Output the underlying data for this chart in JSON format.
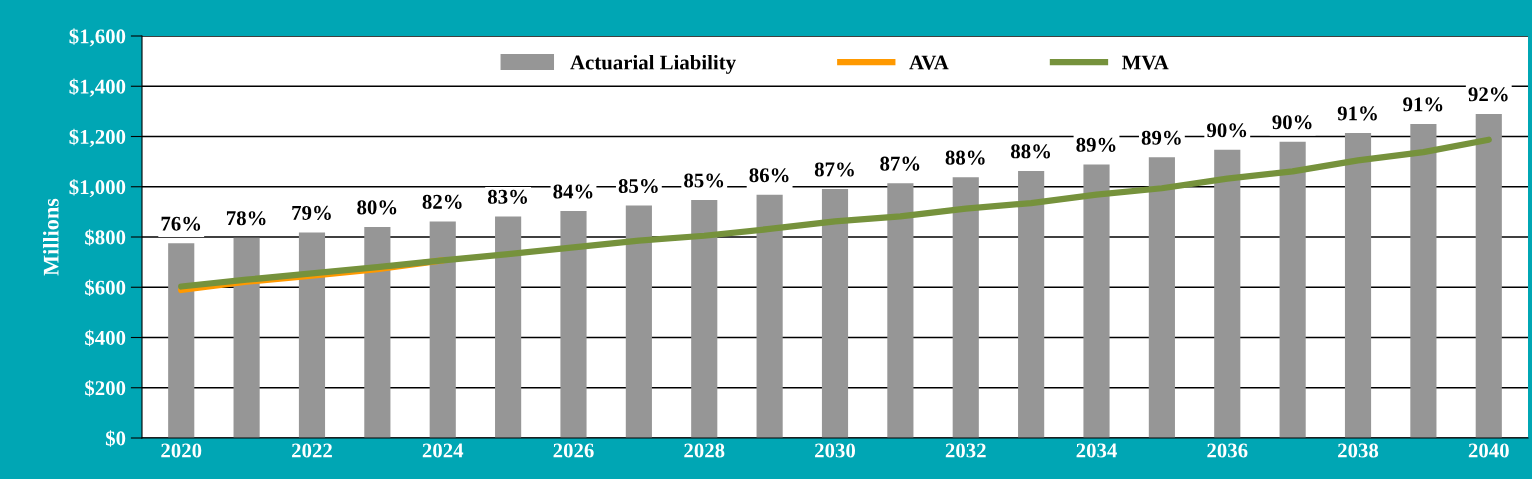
{
  "chart_data": {
    "type": "bar",
    "ylabel": "Millions",
    "categories": [
      "2020",
      null,
      "2022",
      null,
      "2024",
      null,
      "2026",
      null,
      "2028",
      null,
      "2030",
      null,
      "2032",
      null,
      "2034",
      null,
      "2036",
      null,
      "2038",
      null,
      "2040"
    ],
    "series": [
      {
        "name": "Actuarial Liability",
        "color": "#969696",
        "values": [
          775,
          797,
          818,
          840,
          862,
          882,
          903,
          925,
          947,
          968,
          991,
          1014,
          1038,
          1063,
          1089,
          1117,
          1147,
          1179,
          1214,
          1250,
          1290
        ]
      },
      {
        "name": "AVA",
        "type": "line",
        "color": "#ff9900",
        "values": [
          589,
          622,
          646,
          672,
          707,
          null,
          null,
          null,
          null,
          null,
          null,
          null,
          null,
          null,
          null,
          null,
          null,
          null,
          null,
          null,
          null
        ]
      },
      {
        "name": "MVA",
        "type": "line",
        "color": "#76923c",
        "values": [
          603,
          630,
          655,
          680,
          707,
          732,
          759,
          786,
          805,
          832,
          862,
          882,
          913,
          935,
          969,
          994,
          1032,
          1061,
          1105,
          1138,
          1187
        ]
      }
    ],
    "annotations": [
      {
        "text": "76%",
        "x": "2020",
        "y": 775
      },
      {
        "text": "78%",
        "y": 797
      },
      {
        "text": "79%",
        "x": "2022",
        "y": 818
      },
      {
        "text": "80%",
        "y": 840
      },
      {
        "text": "82%",
        "x": "2024",
        "y": 862
      },
      {
        "text": "83%",
        "y": 882
      },
      {
        "text": "84%",
        "x": "2026",
        "y": 903
      },
      {
        "text": "85%",
        "y": 925
      },
      {
        "text": "85%",
        "x": "2028",
        "y": 947
      },
      {
        "text": "86%",
        "y": 968
      },
      {
        "text": "87%",
        "x": "2030",
        "y": 991
      },
      {
        "text": "87%",
        "y": 1014
      },
      {
        "text": "88%",
        "x": "2032",
        "y": 1038
      },
      {
        "text": "88%",
        "y": 1063
      },
      {
        "text": "89%",
        "x": "2034",
        "y": 1089
      },
      {
        "text": "89%",
        "y": 1117
      },
      {
        "text": "90%",
        "x": "2036",
        "y": 1147
      },
      {
        "text": "90%",
        "y": 1179
      },
      {
        "text": "91%",
        "x": "2038",
        "y": 1214
      },
      {
        "text": "91%",
        "y": 1250
      },
      {
        "text": "92%",
        "x": "2040",
        "y": 1290
      }
    ],
    "ylim": [
      0,
      1600
    ],
    "yticks": [
      {
        "value": 0,
        "label": "$0"
      },
      {
        "value": 200,
        "label": "$200"
      },
      {
        "value": 400,
        "label": "$400"
      },
      {
        "value": 600,
        "label": "$600"
      },
      {
        "value": 800,
        "label": "$800"
      },
      {
        "value": 1000,
        "label": "$1,000"
      },
      {
        "value": 1200,
        "label": "$1,200"
      },
      {
        "value": 1400,
        "label": "$1,400"
      },
      {
        "value": 1600,
        "label": "$1,600"
      }
    ],
    "grid": "y",
    "legend": "top"
  }
}
